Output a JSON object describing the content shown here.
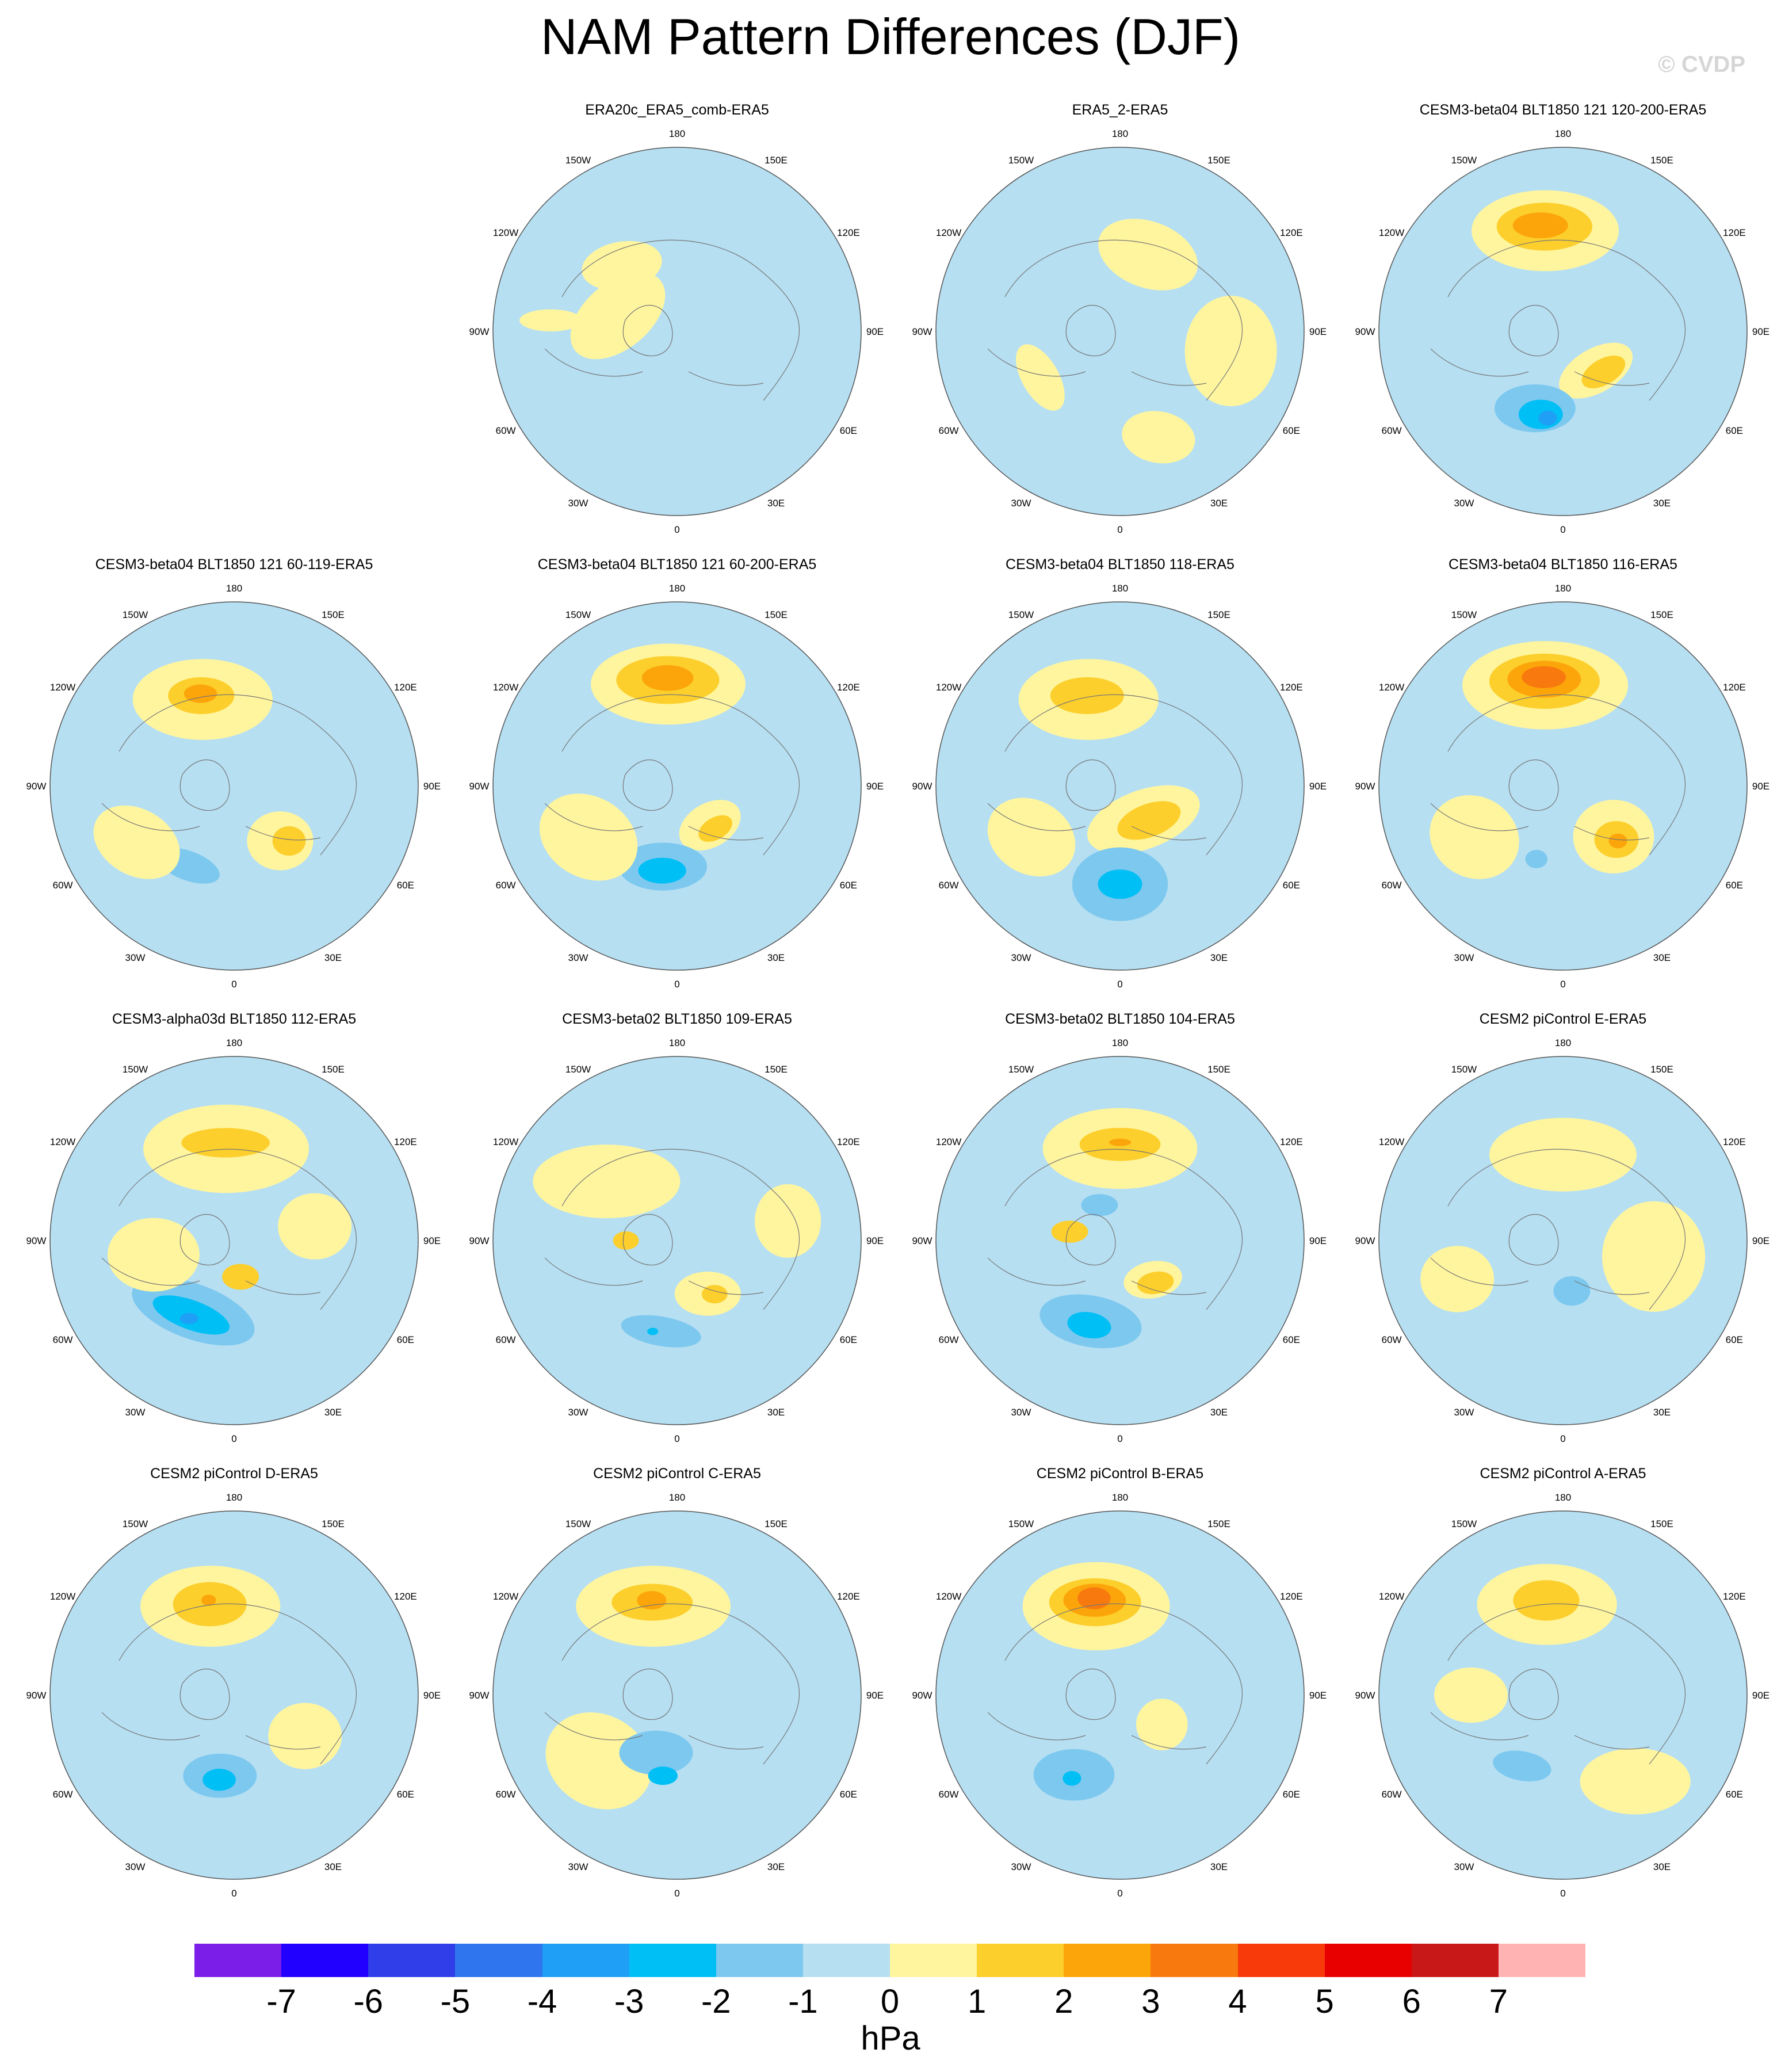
{
  "title": "NAM Pattern Differences (DJF)",
  "watermark": "© CVDP",
  "longitude_labels": [
    "180",
    "150E",
    "120E",
    "90E",
    "60E",
    "30E",
    "0",
    "30W",
    "60W",
    "90W",
    "120W",
    "150W"
  ],
  "panels": [
    {
      "title": "ERA20c_ERA5_comb-ERA5",
      "blobs": [
        {
          "lon": -105,
          "colat": 30,
          "rx": 0.3,
          "ry": 0.18,
          "rot": -40,
          "level": 1
        },
        {
          "lon": -140,
          "colat": 42,
          "rx": 0.22,
          "ry": 0.13,
          "rot": -10,
          "level": 1
        },
        {
          "lon": -95,
          "colat": 62,
          "rx": 0.17,
          "ry": 0.06,
          "rot": 0,
          "level": 1
        }
      ]
    },
    {
      "title": "ERA5_2-ERA5",
      "blobs": [
        {
          "lon": 160,
          "colat": 40,
          "rx": 0.28,
          "ry": 0.18,
          "rot": 20,
          "level": 1
        },
        {
          "lon": 80,
          "colat": 55,
          "rx": 0.25,
          "ry": 0.3,
          "rot": 0,
          "level": 1
        },
        {
          "lon": 20,
          "colat": 55,
          "rx": 0.2,
          "ry": 0.14,
          "rot": 10,
          "level": 1
        },
        {
          "lon": -60,
          "colat": 45,
          "rx": 0.2,
          "ry": 0.1,
          "rot": 60,
          "level": 1
        }
      ]
    },
    {
      "title": "CESM3-beta04 BLT1850 121 120-200-ERA5",
      "blobs": [
        {
          "lon": -170,
          "colat": 50,
          "rx": 0.4,
          "ry": 0.22,
          "rot": 0,
          "level": 1
        },
        {
          "lon": -170,
          "colat": 52,
          "rx": 0.26,
          "ry": 0.13,
          "rot": 0,
          "level": 2
        },
        {
          "lon": -168,
          "colat": 53,
          "rx": 0.15,
          "ry": 0.07,
          "rot": 0,
          "level": 3
        },
        {
          "lon": 40,
          "colat": 25,
          "rx": 0.22,
          "ry": 0.12,
          "rot": -30,
          "level": 1
        },
        {
          "lon": 45,
          "colat": 28,
          "rx": 0.13,
          "ry": 0.07,
          "rot": -30,
          "level": 2
        },
        {
          "lon": -20,
          "colat": 40,
          "rx": 0.22,
          "ry": 0.13,
          "rot": 0,
          "level": -1
        },
        {
          "lon": -15,
          "colat": 42,
          "rx": 0.12,
          "ry": 0.08,
          "rot": 0,
          "level": -2
        },
        {
          "lon": -10,
          "colat": 43,
          "rx": 0.05,
          "ry": 0.04,
          "rot": 0,
          "level": -3
        }
      ]
    },
    {
      "title": "CESM3-beta04 BLT1850 121 60-119-ERA5",
      "blobs": [
        {
          "lon": -160,
          "colat": 45,
          "rx": 0.38,
          "ry": 0.22,
          "rot": 0,
          "level": 1
        },
        {
          "lon": -160,
          "colat": 47,
          "rx": 0.18,
          "ry": 0.1,
          "rot": 0,
          "level": 2
        },
        {
          "lon": -160,
          "colat": 48,
          "rx": 0.09,
          "ry": 0.05,
          "rot": 0,
          "level": 3
        },
        {
          "lon": 40,
          "colat": 35,
          "rx": 0.18,
          "ry": 0.16,
          "rot": 0,
          "level": 1
        },
        {
          "lon": 45,
          "colat": 38,
          "rx": 0.09,
          "ry": 0.08,
          "rot": 0,
          "level": 2
        },
        {
          "lon": -30,
          "colat": 45,
          "rx": 0.18,
          "ry": 0.08,
          "rot": 20,
          "level": -1
        },
        {
          "lon": -60,
          "colat": 55,
          "rx": 0.25,
          "ry": 0.18,
          "rot": 30,
          "level": 1
        }
      ]
    },
    {
      "title": "CESM3-beta04 BLT1850 121 60-200-ERA5",
      "blobs": [
        {
          "lon": -175,
          "colat": 50,
          "rx": 0.42,
          "ry": 0.22,
          "rot": 0,
          "level": 1
        },
        {
          "lon": -175,
          "colat": 52,
          "rx": 0.28,
          "ry": 0.13,
          "rot": 0,
          "level": 2
        },
        {
          "lon": -175,
          "colat": 53,
          "rx": 0.14,
          "ry": 0.07,
          "rot": 0,
          "level": 3
        },
        {
          "lon": 40,
          "colat": 25,
          "rx": 0.18,
          "ry": 0.12,
          "rot": -30,
          "level": 1
        },
        {
          "lon": 42,
          "colat": 28,
          "rx": 0.1,
          "ry": 0.06,
          "rot": -30,
          "level": 2
        },
        {
          "lon": -10,
          "colat": 40,
          "rx": 0.24,
          "ry": 0.13,
          "rot": 0,
          "level": -1
        },
        {
          "lon": -10,
          "colat": 42,
          "rx": 0.13,
          "ry": 0.07,
          "rot": 0,
          "level": -2
        },
        {
          "lon": -60,
          "colat": 50,
          "rx": 0.28,
          "ry": 0.22,
          "rot": 30,
          "level": 1
        }
      ]
    },
    {
      "title": "CESM3-beta04 BLT1850 118-ERA5",
      "blobs": [
        {
          "lon": -160,
          "colat": 45,
          "rx": 0.38,
          "ry": 0.22,
          "rot": 0,
          "level": 1
        },
        {
          "lon": -160,
          "colat": 47,
          "rx": 0.2,
          "ry": 0.1,
          "rot": 0,
          "level": 2
        },
        {
          "lon": 35,
          "colat": 20,
          "rx": 0.32,
          "ry": 0.16,
          "rot": -20,
          "level": 1
        },
        {
          "lon": 40,
          "colat": 22,
          "rx": 0.18,
          "ry": 0.09,
          "rot": -20,
          "level": 2
        },
        {
          "lon": 0,
          "colat": 48,
          "rx": 0.26,
          "ry": 0.2,
          "rot": 0,
          "level": -1
        },
        {
          "lon": 0,
          "colat": 48,
          "rx": 0.12,
          "ry": 0.08,
          "rot": 0,
          "level": -2
        },
        {
          "lon": -60,
          "colat": 50,
          "rx": 0.25,
          "ry": 0.2,
          "rot": 30,
          "level": 1
        }
      ]
    },
    {
      "title": "CESM3-beta04 BLT1850 116-ERA5",
      "blobs": [
        {
          "lon": -170,
          "colat": 50,
          "rx": 0.45,
          "ry": 0.24,
          "rot": 0,
          "level": 1
        },
        {
          "lon": -170,
          "colat": 52,
          "rx": 0.3,
          "ry": 0.15,
          "rot": 0,
          "level": 2
        },
        {
          "lon": -170,
          "colat": 53,
          "rx": 0.2,
          "ry": 0.1,
          "rot": 0,
          "level": 3
        },
        {
          "lon": -170,
          "colat": 54,
          "rx": 0.12,
          "ry": 0.06,
          "rot": 0,
          "level": 4
        },
        {
          "lon": 45,
          "colat": 35,
          "rx": 0.22,
          "ry": 0.2,
          "rot": 0,
          "level": 1
        },
        {
          "lon": 45,
          "colat": 37,
          "rx": 0.12,
          "ry": 0.1,
          "rot": 0,
          "level": 2
        },
        {
          "lon": 45,
          "colat": 38,
          "rx": 0.05,
          "ry": 0.04,
          "rot": 0,
          "level": 3
        },
        {
          "lon": -20,
          "colat": 38,
          "rx": 0.06,
          "ry": 0.05,
          "rot": 0,
          "level": -1
        },
        {
          "lon": -60,
          "colat": 50,
          "rx": 0.25,
          "ry": 0.22,
          "rot": 30,
          "level": 1
        }
      ]
    },
    {
      "title": "CESM3-alpha03d BLT1850 112-ERA5",
      "blobs": [
        {
          "lon": -175,
          "colat": 45,
          "rx": 0.45,
          "ry": 0.24,
          "rot": 0,
          "level": 1
        },
        {
          "lon": -175,
          "colat": 48,
          "rx": 0.24,
          "ry": 0.08,
          "rot": 0,
          "level": 2
        },
        {
          "lon": -30,
          "colat": 40,
          "rx": 0.35,
          "ry": 0.15,
          "rot": 20,
          "level": -1
        },
        {
          "lon": -30,
          "colat": 42,
          "rx": 0.22,
          "ry": 0.08,
          "rot": 20,
          "level": -2
        },
        {
          "lon": -30,
          "colat": 44,
          "rx": 0.05,
          "ry": 0.03,
          "rot": 0,
          "level": -3
        },
        {
          "lon": 10,
          "colat": 18,
          "rx": 0.1,
          "ry": 0.07,
          "rot": 0,
          "level": 2
        },
        {
          "lon": -80,
          "colat": 40,
          "rx": 0.25,
          "ry": 0.2,
          "rot": 0,
          "level": 1
        },
        {
          "lon": 100,
          "colat": 40,
          "rx": 0.2,
          "ry": 0.18,
          "rot": 0,
          "level": 1
        }
      ]
    },
    {
      "title": "CESM3-beta02 BLT1850 109-ERA5",
      "blobs": [
        {
          "lon": -130,
          "colat": 45,
          "rx": 0.4,
          "ry": 0.2,
          "rot": 0,
          "level": 1
        },
        {
          "lon": 30,
          "colat": 30,
          "rx": 0.18,
          "ry": 0.12,
          "rot": 0,
          "level": 1
        },
        {
          "lon": 35,
          "colat": 32,
          "rx": 0.07,
          "ry": 0.05,
          "rot": 0,
          "level": 2
        },
        {
          "lon": -90,
          "colat": 25,
          "rx": 0.07,
          "ry": 0.05,
          "rot": 0,
          "level": 2
        },
        {
          "lon": -10,
          "colat": 45,
          "rx": 0.22,
          "ry": 0.08,
          "rot": 10,
          "level": -1
        },
        {
          "lon": -15,
          "colat": 46,
          "rx": 0.03,
          "ry": 0.02,
          "rot": 0,
          "level": -2
        },
        {
          "lon": 100,
          "colat": 55,
          "rx": 0.18,
          "ry": 0.2,
          "rot": 0,
          "level": 1
        }
      ]
    },
    {
      "title": "CESM3-beta02 BLT1850 104-ERA5",
      "blobs": [
        {
          "lon": -180,
          "colat": 45,
          "rx": 0.42,
          "ry": 0.22,
          "rot": 0,
          "level": 1
        },
        {
          "lon": -180,
          "colat": 47,
          "rx": 0.22,
          "ry": 0.09,
          "rot": 0,
          "level": 2
        },
        {
          "lon": -180,
          "colat": 48,
          "rx": 0.06,
          "ry": 0.02,
          "rot": 0,
          "level": 3
        },
        {
          "lon": 40,
          "colat": 25,
          "rx": 0.16,
          "ry": 0.1,
          "rot": -10,
          "level": 1
        },
        {
          "lon": 40,
          "colat": 27,
          "rx": 0.1,
          "ry": 0.06,
          "rot": -10,
          "level": 2
        },
        {
          "lon": -100,
          "colat": 25,
          "rx": 0.1,
          "ry": 0.06,
          "rot": 0,
          "level": 2
        },
        {
          "lon": -20,
          "colat": 42,
          "rx": 0.28,
          "ry": 0.14,
          "rot": 10,
          "level": -1
        },
        {
          "lon": -20,
          "colat": 44,
          "rx": 0.12,
          "ry": 0.07,
          "rot": 10,
          "level": -2
        },
        {
          "lon": -150,
          "colat": 20,
          "rx": 0.1,
          "ry": 0.06,
          "rot": 0,
          "level": -1
        }
      ]
    },
    {
      "title": "CESM2 piControl E-ERA5",
      "blobs": [
        {
          "lon": -180,
          "colat": 42,
          "rx": 0.4,
          "ry": 0.2,
          "rot": 0,
          "level": 1
        },
        {
          "lon": 80,
          "colat": 45,
          "rx": 0.28,
          "ry": 0.3,
          "rot": 0,
          "level": 1
        },
        {
          "lon": -70,
          "colat": 55,
          "rx": 0.2,
          "ry": 0.18,
          "rot": 0,
          "level": 1
        },
        {
          "lon": 10,
          "colat": 25,
          "rx": 0.1,
          "ry": 0.08,
          "rot": 0,
          "level": -1
        }
      ]
    },
    {
      "title": "CESM2 piControl D-ERA5",
      "blobs": [
        {
          "lon": -165,
          "colat": 45,
          "rx": 0.38,
          "ry": 0.22,
          "rot": 0,
          "level": 1
        },
        {
          "lon": -165,
          "colat": 46,
          "rx": 0.2,
          "ry": 0.12,
          "rot": 0,
          "level": 2
        },
        {
          "lon": -165,
          "colat": 48,
          "rx": 0.04,
          "ry": 0.03,
          "rot": 0,
          "level": 3
        },
        {
          "lon": -10,
          "colat": 40,
          "rx": 0.2,
          "ry": 0.12,
          "rot": 0,
          "level": -1
        },
        {
          "lon": -10,
          "colat": 42,
          "rx": 0.09,
          "ry": 0.06,
          "rot": 0,
          "level": -2
        },
        {
          "lon": 60,
          "colat": 40,
          "rx": 0.2,
          "ry": 0.18,
          "rot": 0,
          "level": 1
        }
      ]
    },
    {
      "title": "CESM2 piControl C-ERA5",
      "blobs": [
        {
          "lon": -165,
          "colat": 45,
          "rx": 0.42,
          "ry": 0.22,
          "rot": 0,
          "level": 1
        },
        {
          "lon": -165,
          "colat": 47,
          "rx": 0.22,
          "ry": 0.1,
          "rot": 0,
          "level": 2
        },
        {
          "lon": -165,
          "colat": 48,
          "rx": 0.08,
          "ry": 0.05,
          "rot": 0,
          "level": 3
        },
        {
          "lon": -50,
          "colat": 50,
          "rx": 0.3,
          "ry": 0.25,
          "rot": 30,
          "level": 1
        },
        {
          "lon": -20,
          "colat": 30,
          "rx": 0.2,
          "ry": 0.12,
          "rot": 0,
          "level": -1
        },
        {
          "lon": -10,
          "colat": 40,
          "rx": 0.08,
          "ry": 0.05,
          "rot": 0,
          "level": -2
        }
      ]
    },
    {
      "title": "CESM2 piControl B-ERA5",
      "blobs": [
        {
          "lon": -165,
          "colat": 45,
          "rx": 0.4,
          "ry": 0.24,
          "rot": 0,
          "level": 1
        },
        {
          "lon": -165,
          "colat": 47,
          "rx": 0.25,
          "ry": 0.13,
          "rot": 0,
          "level": 2
        },
        {
          "lon": -165,
          "colat": 48,
          "rx": 0.17,
          "ry": 0.09,
          "rot": 0,
          "level": 3
        },
        {
          "lon": -165,
          "colat": 49,
          "rx": 0.09,
          "ry": 0.06,
          "rot": 0,
          "level": 4
        },
        {
          "lon": -30,
          "colat": 45,
          "rx": 0.22,
          "ry": 0.14,
          "rot": 0,
          "level": -1
        },
        {
          "lon": -30,
          "colat": 47,
          "rx": 0.05,
          "ry": 0.04,
          "rot": 0,
          "level": -2
        },
        {
          "lon": 55,
          "colat": 25,
          "rx": 0.14,
          "ry": 0.14,
          "rot": 0,
          "level": 1
        }
      ]
    },
    {
      "title": "CESM2 piControl A-ERA5",
      "blobs": [
        {
          "lon": -170,
          "colat": 45,
          "rx": 0.38,
          "ry": 0.22,
          "rot": 0,
          "level": 1
        },
        {
          "lon": -170,
          "colat": 47,
          "rx": 0.18,
          "ry": 0.11,
          "rot": 0,
          "level": 2
        },
        {
          "lon": -30,
          "colat": 40,
          "rx": 0.16,
          "ry": 0.08,
          "rot": 10,
          "level": -1
        },
        {
          "lon": 40,
          "colat": 55,
          "rx": 0.3,
          "ry": 0.18,
          "rot": 0,
          "level": 1
        },
        {
          "lon": -90,
          "colat": 45,
          "rx": 0.2,
          "ry": 0.15,
          "rot": 0,
          "level": 1
        }
      ]
    }
  ],
  "colorbar": {
    "colors": [
      "#7b1fe8",
      "#2200ff",
      "#2f3ee8",
      "#2f76ee",
      "#1f9ff5",
      "#00bff5",
      "#7dc8ef",
      "#b6dff2",
      "#fff59f",
      "#fccf2c",
      "#fca50a",
      "#f87a0f",
      "#f83a0a",
      "#e80000",
      "#c81818",
      "#ffb3b3"
    ],
    "tick_labels": [
      "-7",
      "-6",
      "-5",
      "-4",
      "-3",
      "-2",
      "-1",
      "0",
      "1",
      "2",
      "3",
      "4",
      "5",
      "6",
      "7"
    ],
    "units": "hPa"
  },
  "level_colors": {
    "-4": "#2f76ee",
    "-3": "#1f9ff5",
    "-2": "#00bff5",
    "-1": "#7dc8ef",
    "0": "#b6dff2",
    "1": "#fff59f",
    "2": "#fccf2c",
    "3": "#fca50a",
    "4": "#f87a0f",
    "5": "#f83a0a"
  }
}
